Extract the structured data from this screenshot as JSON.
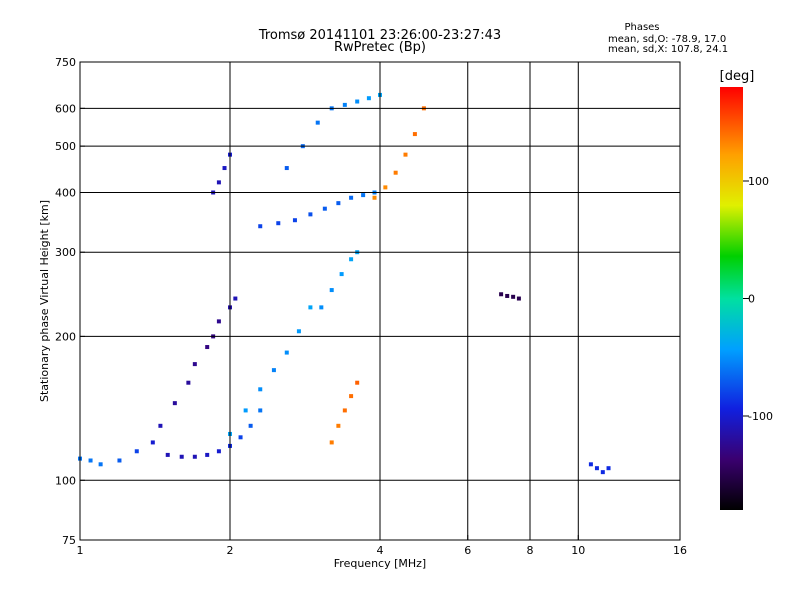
{
  "chart_data": {
    "type": "scatter",
    "title": "Tromsø 20141101 23:26:00-23:27:43",
    "subtitle": "RwPretec (Bp)",
    "xlabel": "Frequency [MHz]",
    "ylabel": "Stationary phase Virtual Height [km]",
    "x_scale": "log",
    "y_scale": "log",
    "xlim": [
      1,
      16
    ],
    "ylim": [
      75,
      750
    ],
    "x_ticks": [
      1,
      2,
      4,
      6,
      8,
      10,
      16
    ],
    "x_tick_labels": [
      "1",
      "2",
      "4",
      "6",
      "8",
      "10",
      "16"
    ],
    "y_ticks": [
      75,
      100,
      200,
      300,
      400,
      500,
      600,
      750
    ],
    "y_tick_labels": [
      "75",
      "100",
      "200",
      "300",
      "400",
      "500",
      "600",
      "750"
    ],
    "grid": true,
    "legend": {
      "position": "top-right",
      "title": "Phases",
      "line1": "mean, sd,O: -78.9, 17.0",
      "line2": "mean, sd,X: 107.8, 24.1"
    },
    "colorbar": {
      "label": "[deg]",
      "range": [
        -180,
        180
      ],
      "ticks": [
        100,
        0,
        -100
      ],
      "tick_labels": [
        "100",
        "0",
        "-100"
      ]
    },
    "series": [
      {
        "x": [
          1.0,
          1.05,
          1.1,
          1.2,
          1.3,
          1.4,
          1.5,
          1.6,
          1.7,
          1.8,
          1.9,
          2.0,
          2.1,
          2.2,
          2.3
        ],
        "y": [
          111,
          110,
          108,
          110,
          115,
          120,
          113,
          112,
          112,
          113,
          115,
          118,
          123,
          130,
          140
        ],
        "phase": [
          -60,
          -60,
          -60,
          -70,
          -80,
          -100,
          -110,
          -110,
          -110,
          -105,
          -100,
          -90,
          -80,
          -70,
          -60
        ]
      },
      {
        "x": [
          1.45,
          1.55,
          1.65,
          1.7,
          1.8,
          1.85,
          1.9,
          2.0,
          2.05
        ],
        "y": [
          130,
          145,
          160,
          175,
          190,
          200,
          215,
          230,
          240
        ],
        "phase": [
          -110,
          -120,
          -120,
          -125,
          -130,
          -130,
          -125,
          -115,
          -110
        ]
      },
      {
        "x": [
          2.0,
          2.15,
          2.3,
          2.45,
          2.6,
          2.75,
          2.9
        ],
        "y": [
          125,
          140,
          155,
          170,
          185,
          205,
          230
        ],
        "phase": [
          -40,
          -45,
          -50,
          -55,
          -50,
          -45,
          -40
        ]
      },
      {
        "x": [
          1.85,
          1.9,
          1.95,
          2.0
        ],
        "y": [
          400,
          420,
          450,
          480
        ],
        "phase": [
          -110,
          -110,
          -105,
          -100
        ]
      },
      {
        "x": [
          2.3,
          2.5,
          2.7,
          2.9,
          3.1,
          3.3,
          3.5,
          3.7,
          3.9
        ],
        "y": [
          340,
          345,
          350,
          360,
          370,
          380,
          390,
          395,
          400
        ],
        "phase": [
          -80,
          -80,
          -80,
          -75,
          -70,
          -70,
          -65,
          -60,
          -55
        ]
      },
      {
        "x": [
          2.6,
          2.8,
          3.0,
          3.2,
          3.4,
          3.6,
          3.8,
          4.0
        ],
        "y": [
          450,
          500,
          560,
          600,
          610,
          620,
          630,
          640
        ],
        "phase": [
          -70,
          -65,
          -60,
          -60,
          -55,
          -50,
          -45,
          -40
        ]
      },
      {
        "x": [
          3.05,
          3.2,
          3.35,
          3.5,
          3.6
        ],
        "y": [
          230,
          250,
          270,
          290,
          300
        ],
        "phase": [
          -50,
          -50,
          -45,
          -40,
          -40
        ]
      },
      {
        "x": [
          3.9,
          4.1,
          4.3,
          4.5,
          4.7,
          4.9
        ],
        "y": [
          390,
          410,
          440,
          480,
          530,
          600
        ],
        "phase": [
          130,
          130,
          135,
          135,
          140,
          140
        ]
      },
      {
        "x": [
          3.2,
          3.3,
          3.4,
          3.5,
          3.6
        ],
        "y": [
          120,
          130,
          140,
          150,
          160
        ],
        "phase": [
          135,
          135,
          140,
          140,
          145
        ]
      },
      {
        "x": [
          7.0,
          7.2,
          7.4,
          7.6
        ],
        "y": [
          245,
          243,
          242,
          240
        ],
        "phase": [
          -150,
          -150,
          -150,
          -150
        ]
      },
      {
        "x": [
          10.6,
          10.9,
          11.2,
          11.5
        ],
        "y": [
          108,
          106,
          104,
          106
        ],
        "phase": [
          -90,
          -90,
          -90,
          -90
        ]
      }
    ]
  }
}
